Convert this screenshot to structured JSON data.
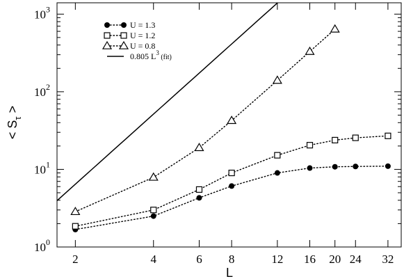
{
  "chart_data": {
    "type": "scatter",
    "xscale": "log",
    "yscale": "log",
    "xlim": [
      1.7,
      36
    ],
    "ylim": [
      1,
      1400
    ],
    "xlabel": "L",
    "ylabel_main": "< S",
    "ylabel_sub": "τ",
    "ylabel_end": " >",
    "xticks": [
      2,
      4,
      6,
      8,
      12,
      16,
      20,
      24,
      32
    ],
    "xtick_labels": [
      "2",
      "4",
      "6",
      "8",
      "12",
      "16",
      "20",
      "24",
      "32"
    ],
    "yticks": [
      {
        "value": 1,
        "base": "10",
        "exp": "0"
      },
      {
        "value": 10,
        "base": "10",
        "exp": "1"
      },
      {
        "value": 100,
        "base": "10",
        "exp": "2"
      },
      {
        "value": 1000,
        "base": "10",
        "exp": "3"
      }
    ],
    "series": [
      {
        "name": "U = 1.3",
        "marker": "filled-circle",
        "x": [
          2,
          4,
          6,
          8,
          12,
          16,
          20,
          24,
          32
        ],
        "y": [
          1.68,
          2.5,
          4.3,
          6.1,
          9.0,
          10.4,
          10.8,
          10.9,
          11.0
        ]
      },
      {
        "name": "U = 1.2",
        "marker": "open-square",
        "x": [
          2,
          4,
          6,
          8,
          12,
          16,
          20,
          24,
          32
        ],
        "y": [
          1.85,
          3.0,
          5.5,
          9.0,
          15.2,
          20.5,
          23.8,
          25.5,
          27.0
        ]
      },
      {
        "name": "U = 0.8",
        "marker": "open-triangle",
        "x": [
          2,
          4,
          6,
          8,
          12,
          16,
          20
        ],
        "y": [
          2.85,
          7.9,
          19.0,
          42.5,
          140,
          330,
          640
        ]
      }
    ],
    "fit": {
      "name": "0.805 L",
      "sup": "3",
      "suffix": " (fit)",
      "coef": 0.805,
      "power": 3
    },
    "legend_position": "top-left"
  }
}
